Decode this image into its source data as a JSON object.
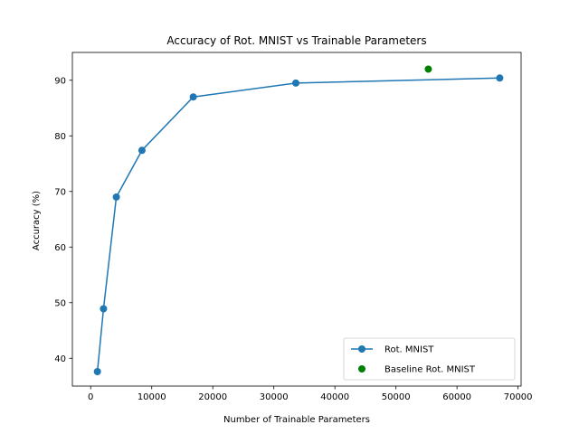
{
  "chart_data": {
    "type": "line",
    "title": "Accuracy of Rot. MNIST vs Trainable Parameters",
    "xlabel": "Number of Trainable Parameters",
    "ylabel": "Accuracy (%)",
    "xlim": [
      -3000,
      70500
    ],
    "ylim": [
      35,
      95
    ],
    "xticks": [
      0,
      10000,
      20000,
      30000,
      40000,
      50000,
      60000,
      70000
    ],
    "yticks": [
      40,
      50,
      60,
      70,
      80,
      90
    ],
    "grid": false,
    "legend_position": "lower right",
    "series": [
      {
        "name": "Rot. MNIST",
        "kind": "line-marker",
        "color": "#1f77b4",
        "points": [
          {
            "x": 1100,
            "y": 37.6
          },
          {
            "x": 2100,
            "y": 48.9
          },
          {
            "x": 4200,
            "y": 69.0
          },
          {
            "x": 8400,
            "y": 77.4
          },
          {
            "x": 16800,
            "y": 87.0
          },
          {
            "x": 33600,
            "y": 89.5
          },
          {
            "x": 67000,
            "y": 90.4
          }
        ]
      },
      {
        "name": "Baseline Rot. MNIST",
        "kind": "scatter",
        "color": "#008000",
        "points": [
          {
            "x": 55300,
            "y": 92.0
          }
        ]
      }
    ]
  }
}
